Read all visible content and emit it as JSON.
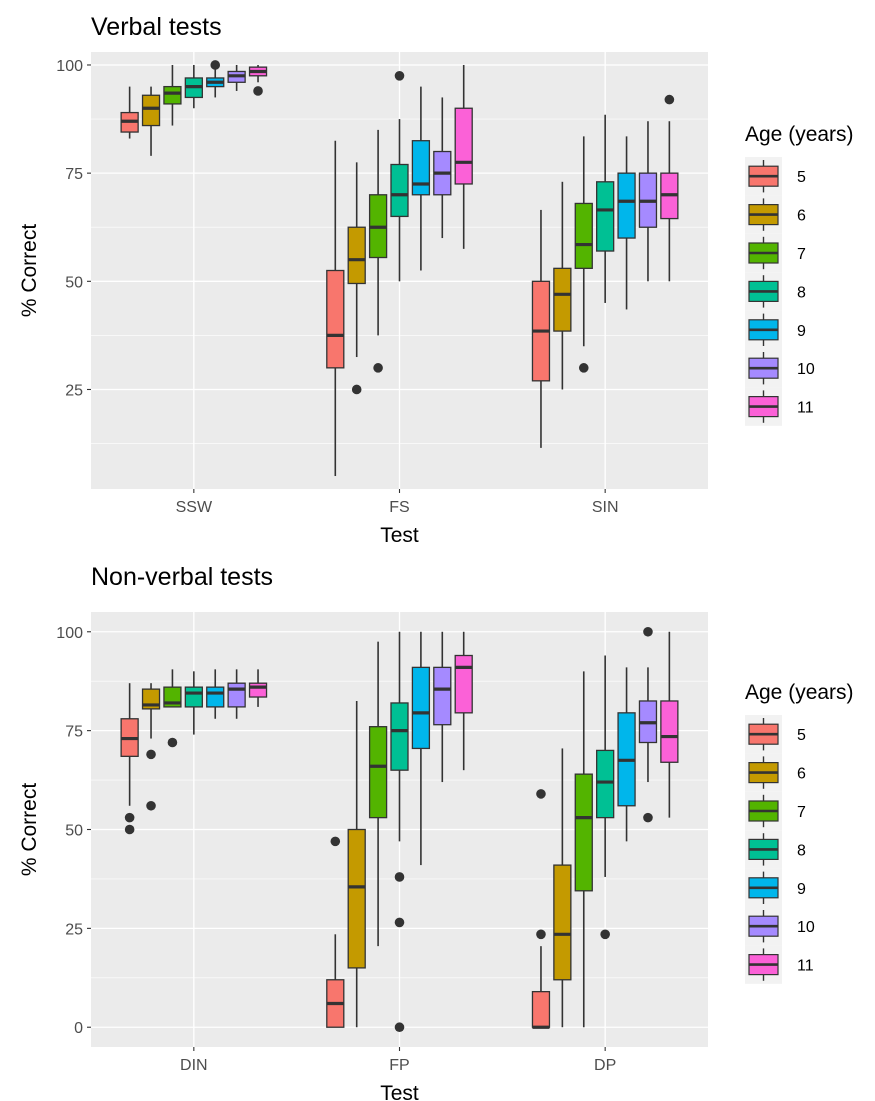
{
  "chart_data": [
    {
      "type": "boxplot",
      "title": "Verbal tests",
      "xlabel": "Test",
      "ylabel": "% Correct",
      "categories": [
        "SSW",
        "FS",
        "SIN"
      ],
      "yticks": [
        25,
        50,
        75,
        100
      ],
      "ylim": [
        2,
        103
      ],
      "grid": true,
      "legend": {
        "title": "Age (years)",
        "position": "right"
      },
      "series": [
        {
          "name": "5",
          "color": "#F8766D",
          "boxes": [
            {
              "low": 83,
              "q1": 84.5,
              "median": 87,
              "q3": 89,
              "high": 95,
              "outliers": []
            },
            {
              "low": 5,
              "q1": 30,
              "median": 37.5,
              "q3": 52.5,
              "high": 82.5,
              "outliers": []
            },
            {
              "low": 11.5,
              "q1": 27,
              "median": 38.5,
              "q3": 50,
              "high": 66.5,
              "outliers": []
            }
          ]
        },
        {
          "name": "6",
          "color": "#C49A00",
          "boxes": [
            {
              "low": 79,
              "q1": 86,
              "median": 90,
              "q3": 93,
              "high": 95,
              "outliers": []
            },
            {
              "low": 32.5,
              "q1": 49.5,
              "median": 55,
              "q3": 62.5,
              "high": 77.5,
              "outliers": [
                25
              ]
            },
            {
              "low": 25,
              "q1": 38.5,
              "median": 47,
              "q3": 53,
              "high": 73,
              "outliers": []
            }
          ]
        },
        {
          "name": "7",
          "color": "#53B400",
          "boxes": [
            {
              "low": 86,
              "q1": 91,
              "median": 93.5,
              "q3": 95,
              "high": 100,
              "outliers": []
            },
            {
              "low": 37.5,
              "q1": 55.5,
              "median": 62.5,
              "q3": 70,
              "high": 85,
              "outliers": [
                30
              ]
            },
            {
              "low": 35,
              "q1": 53,
              "median": 58.5,
              "q3": 68,
              "high": 83.5,
              "outliers": [
                30
              ]
            }
          ]
        },
        {
          "name": "8",
          "color": "#00C094",
          "boxes": [
            {
              "low": 90,
              "q1": 92.5,
              "median": 95,
              "q3": 97,
              "high": 100,
              "outliers": []
            },
            {
              "low": 50,
              "q1": 65,
              "median": 70,
              "q3": 77,
              "high": 87.5,
              "outliers": [
                97.5
              ]
            },
            {
              "low": 45,
              "q1": 57,
              "median": 66.5,
              "q3": 73,
              "high": 88.5,
              "outliers": []
            }
          ]
        },
        {
          "name": "9",
          "color": "#00B6EB",
          "boxes": [
            {
              "low": 92.5,
              "q1": 95,
              "median": 96,
              "q3": 97,
              "high": 100,
              "outliers": [
                100
              ]
            },
            {
              "low": 52.5,
              "q1": 70,
              "median": 72.5,
              "q3": 82.5,
              "high": 95,
              "outliers": []
            },
            {
              "low": 43.5,
              "q1": 60,
              "median": 68.5,
              "q3": 75,
              "high": 83.5,
              "outliers": []
            }
          ]
        },
        {
          "name": "10",
          "color": "#A58AFF",
          "boxes": [
            {
              "low": 94,
              "q1": 96,
              "median": 97.5,
              "q3": 98.5,
              "high": 100,
              "outliers": []
            },
            {
              "low": 60,
              "q1": 70,
              "median": 75,
              "q3": 80,
              "high": 92.5,
              "outliers": []
            },
            {
              "low": 50,
              "q1": 62.5,
              "median": 68.5,
              "q3": 75,
              "high": 87,
              "outliers": []
            }
          ]
        },
        {
          "name": "11",
          "color": "#FB61D7",
          "boxes": [
            {
              "low": 96,
              "q1": 97.5,
              "median": 98.5,
              "q3": 99.5,
              "high": 100,
              "outliers": [
                94
              ]
            },
            {
              "low": 57.5,
              "q1": 72.5,
              "median": 77.5,
              "q3": 90,
              "high": 100,
              "outliers": []
            },
            {
              "low": 50,
              "q1": 64.5,
              "median": 70,
              "q3": 75,
              "high": 87,
              "outliers": [
                92
              ]
            }
          ]
        }
      ]
    },
    {
      "type": "boxplot",
      "title": "Non-verbal tests",
      "xlabel": "Test",
      "ylabel": "% Correct",
      "categories": [
        "DIN",
        "FP",
        "DP"
      ],
      "yticks": [
        0,
        25,
        50,
        75,
        100
      ],
      "ylim": [
        -5,
        105
      ],
      "grid": true,
      "legend": {
        "title": "Age (years)",
        "position": "right"
      },
      "series": [
        {
          "name": "5",
          "color": "#F8766D",
          "boxes": [
            {
              "low": 56,
              "q1": 68.5,
              "median": 73,
              "q3": 78,
              "high": 87,
              "outliers": [
                53,
                50
              ]
            },
            {
              "low": 0,
              "q1": 0,
              "median": 6,
              "q3": 12,
              "high": 23.5,
              "outliers": [
                47
              ]
            },
            {
              "low": 0,
              "q1": 0,
              "median": 0,
              "q3": 9,
              "high": 20.5,
              "outliers": [
                23.5,
                59
              ]
            }
          ]
        },
        {
          "name": "6",
          "color": "#C49A00",
          "boxes": [
            {
              "low": 73,
              "q1": 80.5,
              "median": 81.5,
              "q3": 85.5,
              "high": 87,
              "outliers": [
                69,
                56
              ]
            },
            {
              "low": 0,
              "q1": 15,
              "median": 35.5,
              "q3": 50,
              "high": 82.5,
              "outliers": []
            },
            {
              "low": 0,
              "q1": 12,
              "median": 23.5,
              "q3": 41,
              "high": 70.5,
              "outliers": []
            }
          ]
        },
        {
          "name": "7",
          "color": "#53B400",
          "boxes": [
            {
              "low": 81,
              "q1": 81,
              "median": 82,
              "q3": 86,
              "high": 90.5,
              "outliers": [
                72
              ]
            },
            {
              "low": 20.5,
              "q1": 53,
              "median": 66,
              "q3": 76,
              "high": 97.5,
              "outliers": []
            },
            {
              "low": 0,
              "q1": 34.5,
              "median": 53,
              "q3": 64,
              "high": 90,
              "outliers": []
            }
          ]
        },
        {
          "name": "8",
          "color": "#00C094",
          "boxes": [
            {
              "low": 74,
              "q1": 81,
              "median": 84.5,
              "q3": 86,
              "high": 90,
              "outliers": []
            },
            {
              "low": 47,
              "q1": 65,
              "median": 75,
              "q3": 82,
              "high": 100,
              "outliers": [
                38,
                26.5,
                0
              ]
            },
            {
              "low": 38,
              "q1": 53,
              "median": 62,
              "q3": 70,
              "high": 94,
              "outliers": [
                23.5
              ]
            }
          ]
        },
        {
          "name": "9",
          "color": "#00B6EB",
          "boxes": [
            {
              "low": 78,
              "q1": 81,
              "median": 84.5,
              "q3": 86,
              "high": 90.5,
              "outliers": []
            },
            {
              "low": 41,
              "q1": 70.5,
              "median": 79.5,
              "q3": 91,
              "high": 100,
              "outliers": []
            },
            {
              "low": 47,
              "q1": 56,
              "median": 67.5,
              "q3": 79.5,
              "high": 91,
              "outliers": []
            }
          ]
        },
        {
          "name": "10",
          "color": "#A58AFF",
          "boxes": [
            {
              "low": 78,
              "q1": 81,
              "median": 85.5,
              "q3": 87,
              "high": 90.5,
              "outliers": []
            },
            {
              "low": 62,
              "q1": 76.5,
              "median": 85.5,
              "q3": 91,
              "high": 100,
              "outliers": []
            },
            {
              "low": 62,
              "q1": 72,
              "median": 77,
              "q3": 82.5,
              "high": 91,
              "outliers": [
                53,
                100
              ]
            }
          ]
        },
        {
          "name": "11",
          "color": "#FB61D7",
          "boxes": [
            {
              "low": 81,
              "q1": 83.5,
              "median": 86,
              "q3": 87,
              "high": 90.5,
              "outliers": []
            },
            {
              "low": 65,
              "q1": 79.5,
              "median": 91,
              "q3": 94,
              "high": 100,
              "outliers": []
            },
            {
              "low": 53,
              "q1": 67,
              "median": 73.5,
              "q3": 82.5,
              "high": 100,
              "outliers": []
            }
          ]
        }
      ]
    }
  ]
}
